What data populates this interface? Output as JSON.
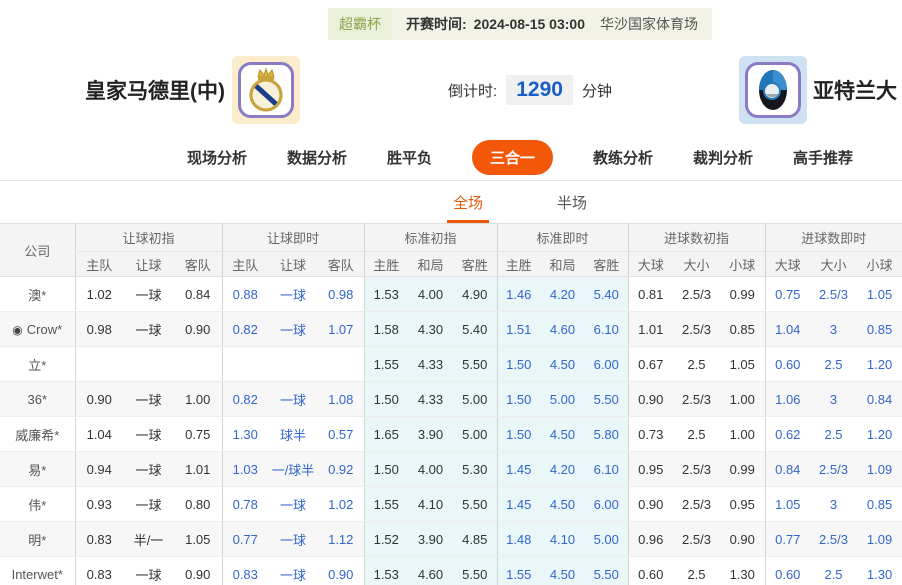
{
  "top_bar": {
    "league": "超霸杯",
    "kickoff_label": "开赛时间:",
    "kickoff_time": "2024-08-15 03:00",
    "venue": "华沙国家体育场"
  },
  "match": {
    "home_team": "皇家马德里(中)",
    "away_team": "亚特兰大",
    "countdown_label": "倒计时:",
    "countdown_value": "1290",
    "countdown_unit": "分钟"
  },
  "nav_tabs": [
    {
      "label": "现场分析",
      "active": false
    },
    {
      "label": "数据分析",
      "active": false
    },
    {
      "label": "胜平负",
      "active": false
    },
    {
      "label": "三合一",
      "active": true
    },
    {
      "label": "教练分析",
      "active": false
    },
    {
      "label": "裁判分析",
      "active": false
    },
    {
      "label": "高手推荐",
      "active": false
    }
  ],
  "subtabs": [
    {
      "label": "全场",
      "active": true
    },
    {
      "label": "半场",
      "active": false
    }
  ],
  "odds_table": {
    "company_header": "公司",
    "groups": [
      {
        "title": "让球初指",
        "cols": [
          "主队",
          "让球",
          "客队"
        ]
      },
      {
        "title": "让球即时",
        "cols": [
          "主队",
          "让球",
          "客队"
        ]
      },
      {
        "title": "标准初指",
        "cols": [
          "主胜",
          "和局",
          "客胜"
        ]
      },
      {
        "title": "标准即时",
        "cols": [
          "主胜",
          "和局",
          "客胜"
        ]
      },
      {
        "title": "进球数初指",
        "cols": [
          "大球",
          "大小",
          "小球"
        ]
      },
      {
        "title": "进球数即时",
        "cols": [
          "大球",
          "大小",
          "小球"
        ]
      }
    ],
    "rows": [
      {
        "company": "澳*",
        "icon": false,
        "values": [
          [
            "1.02",
            "一球",
            "0.84"
          ],
          [
            "0.88",
            "一球",
            "0.98"
          ],
          [
            "1.53",
            "4.00",
            "4.90"
          ],
          [
            "1.46",
            "4.20",
            "5.40"
          ],
          [
            "0.81",
            "2.5/3",
            "0.99"
          ],
          [
            "0.75",
            "2.5/3",
            "1.05"
          ]
        ]
      },
      {
        "company": "Crow*",
        "icon": true,
        "values": [
          [
            "0.98",
            "一球",
            "0.90"
          ],
          [
            "0.82",
            "一球",
            "1.07"
          ],
          [
            "1.58",
            "4.30",
            "5.40"
          ],
          [
            "1.51",
            "4.60",
            "6.10"
          ],
          [
            "1.01",
            "2.5/3",
            "0.85"
          ],
          [
            "1.04",
            "3",
            "0.85"
          ]
        ]
      },
      {
        "company": "立*",
        "icon": false,
        "values": [
          [
            "",
            "",
            ""
          ],
          [
            "",
            "",
            ""
          ],
          [
            "1.55",
            "4.33",
            "5.50"
          ],
          [
            "1.50",
            "4.50",
            "6.00"
          ],
          [
            "0.67",
            "2.5",
            "1.05"
          ],
          [
            "0.60",
            "2.5",
            "1.20"
          ]
        ]
      },
      {
        "company": "36*",
        "icon": false,
        "values": [
          [
            "0.90",
            "一球",
            "1.00"
          ],
          [
            "0.82",
            "一球",
            "1.08"
          ],
          [
            "1.50",
            "4.33",
            "5.00"
          ],
          [
            "1.50",
            "5.00",
            "5.50"
          ],
          [
            "0.90",
            "2.5/3",
            "1.00"
          ],
          [
            "1.06",
            "3",
            "0.84"
          ]
        ]
      },
      {
        "company": "威廉希*",
        "icon": false,
        "values": [
          [
            "1.04",
            "一球",
            "0.75"
          ],
          [
            "1.30",
            "球半",
            "0.57"
          ],
          [
            "1.65",
            "3.90",
            "5.00"
          ],
          [
            "1.50",
            "4.50",
            "5.80"
          ],
          [
            "0.73",
            "2.5",
            "1.00"
          ],
          [
            "0.62",
            "2.5",
            "1.20"
          ]
        ]
      },
      {
        "company": "易*",
        "icon": false,
        "values": [
          [
            "0.94",
            "一球",
            "1.01"
          ],
          [
            "1.03",
            "一/球半",
            "0.92"
          ],
          [
            "1.50",
            "4.00",
            "5.30"
          ],
          [
            "1.45",
            "4.20",
            "6.10"
          ],
          [
            "0.95",
            "2.5/3",
            "0.99"
          ],
          [
            "0.84",
            "2.5/3",
            "1.09"
          ]
        ]
      },
      {
        "company": "伟*",
        "icon": false,
        "values": [
          [
            "0.93",
            "一球",
            "0.80"
          ],
          [
            "0.78",
            "一球",
            "1.02"
          ],
          [
            "1.55",
            "4.10",
            "5.50"
          ],
          [
            "1.45",
            "4.50",
            "6.00"
          ],
          [
            "0.90",
            "2.5/3",
            "0.95"
          ],
          [
            "1.05",
            "3",
            "0.85"
          ]
        ]
      },
      {
        "company": "明*",
        "icon": false,
        "values": [
          [
            "0.83",
            "半/一",
            "1.05"
          ],
          [
            "0.77",
            "一球",
            "1.12"
          ],
          [
            "1.52",
            "3.90",
            "4.85"
          ],
          [
            "1.48",
            "4.10",
            "5.00"
          ],
          [
            "0.96",
            "2.5/3",
            "0.90"
          ],
          [
            "0.77",
            "2.5/3",
            "1.09"
          ]
        ]
      },
      {
        "company": "Interwet*",
        "icon": false,
        "values": [
          [
            "0.83",
            "一球",
            "0.90"
          ],
          [
            "0.83",
            "一球",
            "0.90"
          ],
          [
            "1.53",
            "4.60",
            "5.50"
          ],
          [
            "1.55",
            "4.50",
            "5.50"
          ],
          [
            "0.60",
            "2.5",
            "1.30"
          ],
          [
            "0.60",
            "2.5",
            "1.30"
          ]
        ]
      }
    ]
  },
  "colors": {
    "accent_orange": "#f2570a",
    "live_blue": "#3366cc",
    "standard_bg_cyan": "#e9f7f9",
    "countdown_blue": "#1a5fc8",
    "league_green": "#8aa54b"
  }
}
